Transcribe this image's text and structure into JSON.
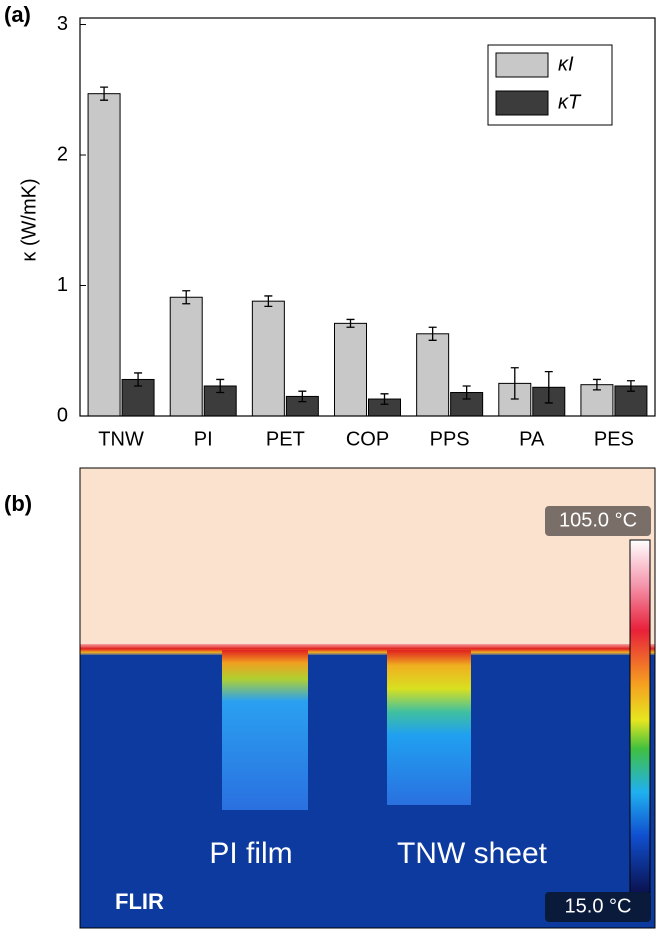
{
  "chart_data": {
    "type": "bar",
    "panel_label": "(a)",
    "ylabel": "κ (W/mK)",
    "categories": [
      "TNW",
      "PI",
      "PET",
      "COP",
      "PPS",
      "PA",
      "PES"
    ],
    "series": [
      {
        "name": "κI",
        "color": "#c8c8c8",
        "values": [
          2.47,
          0.91,
          0.88,
          0.71,
          0.63,
          0.25,
          0.24
        ],
        "errors": [
          0.05,
          0.05,
          0.04,
          0.03,
          0.05,
          0.12,
          0.04
        ]
      },
      {
        "name": "κT",
        "color": "#3c3c3c",
        "values": [
          0.28,
          0.23,
          0.15,
          0.13,
          0.18,
          0.22,
          0.23
        ],
        "errors": [
          0.05,
          0.05,
          0.04,
          0.04,
          0.05,
          0.12,
          0.04
        ]
      }
    ],
    "ylim": [
      0,
      3.05
    ],
    "yticks": [
      0,
      1,
      2,
      3
    ],
    "legend": "upper right"
  },
  "image_panel": {
    "panel_label": "(b)",
    "scale_max": "105.0 °C",
    "scale_min": "15.0 °C",
    "labels": [
      "PI film",
      "TNW sheet"
    ],
    "logo": "FLIR"
  }
}
